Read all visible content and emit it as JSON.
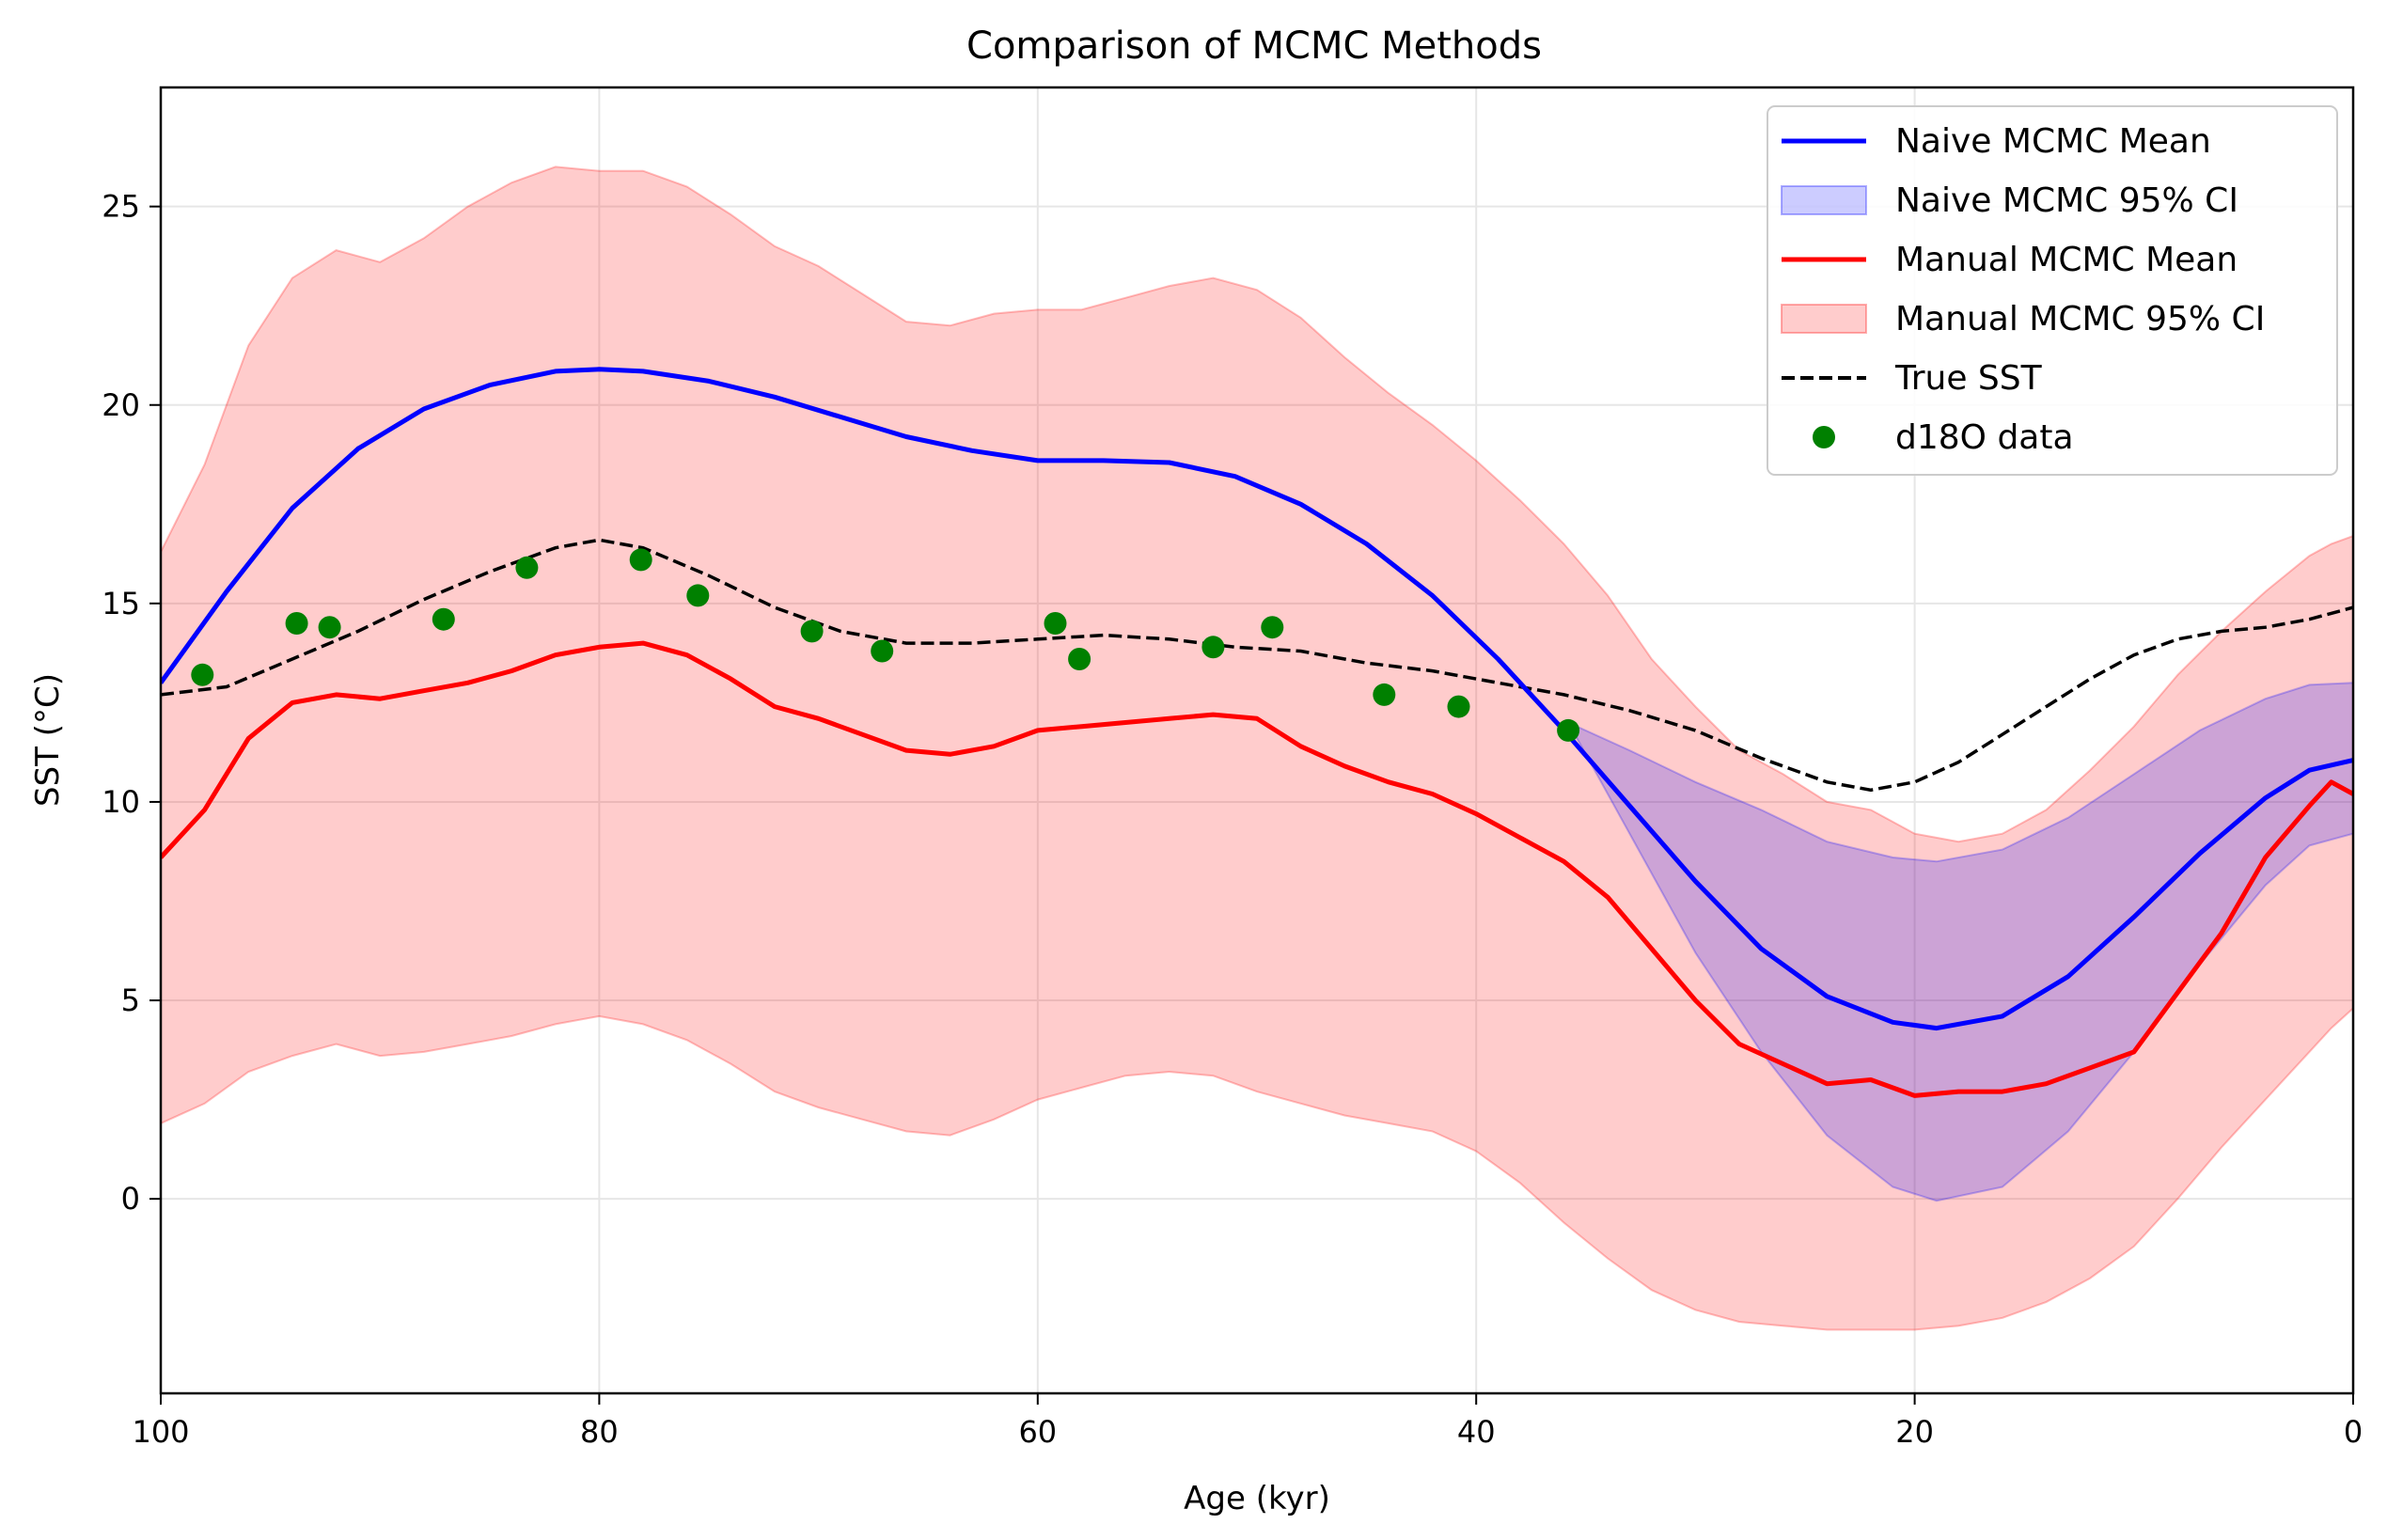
{
  "chart_data": {
    "type": "line",
    "title": "Comparison of MCMC Methods",
    "xlabel": "Age (kyr)",
    "ylabel": "SST (°C)",
    "xlim": [
      100,
      0
    ],
    "ylim": [
      -4.9,
      28
    ],
    "x_inverted": true,
    "grid": true,
    "legend_position": "upper right",
    "xticks": [
      {
        "value": 100,
        "label": "100"
      },
      {
        "value": 80,
        "label": "80"
      },
      {
        "value": 60,
        "label": "60"
      },
      {
        "value": 40,
        "label": "40"
      },
      {
        "value": 20,
        "label": "20"
      },
      {
        "value": 0,
        "label": "0"
      }
    ],
    "yticks": [
      {
        "value": 0,
        "label": "0"
      },
      {
        "value": 5,
        "label": "5"
      },
      {
        "value": 10,
        "label": "10"
      },
      {
        "value": 15,
        "label": "15"
      },
      {
        "value": 20,
        "label": "20"
      },
      {
        "value": 25,
        "label": "25"
      }
    ],
    "legend": [
      {
        "key": "naive_mean",
        "label": "Naive MCMC Mean"
      },
      {
        "key": "naive_ci",
        "label": "Naive MCMC 95% CI"
      },
      {
        "key": "manual_mean",
        "label": "Manual MCMC Mean"
      },
      {
        "key": "manual_ci",
        "label": "Manual MCMC 95% CI"
      },
      {
        "key": "true_sst",
        "label": "True SST"
      },
      {
        "key": "d18o",
        "label": "d18O data"
      }
    ],
    "colors": {
      "naive_mean": "#0000ff",
      "naive_ci": "#0000ff",
      "manual_mean": "#ff0000",
      "manual_ci": "#ff0000",
      "true_sst": "#000000",
      "d18o": "#008000"
    },
    "series": {
      "naive_mean": {
        "name": "Naive MCMC Mean",
        "x": [
          100,
          97,
          94,
          91,
          88,
          85,
          82,
          80,
          78,
          75,
          72,
          69,
          66,
          63,
          60,
          57,
          54,
          51,
          48,
          45,
          42,
          39,
          36,
          33,
          30,
          27,
          24,
          21,
          19,
          16,
          13,
          10,
          7,
          4,
          2,
          0
        ],
        "y": [
          13.0,
          15.3,
          17.4,
          18.9,
          19.9,
          20.5,
          20.85,
          20.9,
          20.85,
          20.6,
          20.2,
          19.7,
          19.2,
          18.85,
          18.6,
          18.6,
          18.55,
          18.2,
          17.5,
          16.5,
          15.2,
          13.6,
          11.8,
          9.9,
          8.0,
          6.3,
          5.1,
          4.45,
          4.3,
          4.6,
          5.6,
          7.1,
          8.7,
          10.1,
          10.8,
          11.05
        ]
      },
      "naive_ci": {
        "name": "Naive MCMC 95% CI",
        "x": [
          35.8,
          33,
          30,
          27,
          24,
          21,
          19,
          16,
          13,
          10,
          7,
          4,
          2,
          0
        ],
        "upper": [
          12.0,
          11.3,
          10.5,
          9.8,
          9.0,
          8.6,
          8.5,
          8.8,
          9.6,
          10.7,
          11.8,
          12.6,
          12.95,
          13.0
        ],
        "lower": [
          12.0,
          9.2,
          6.2,
          3.7,
          1.6,
          0.3,
          -0.05,
          0.3,
          1.7,
          3.7,
          5.9,
          7.9,
          8.9,
          9.2
        ]
      },
      "manual_mean": {
        "name": "Manual MCMC Mean",
        "x": [
          100,
          98,
          96,
          94,
          92,
          90,
          88,
          86,
          84,
          82,
          80,
          78,
          76,
          74,
          72,
          70,
          68,
          66,
          64,
          62,
          60,
          58,
          56,
          54,
          52,
          50,
          48,
          46,
          44,
          42,
          40,
          38,
          36,
          34,
          32,
          30,
          28,
          26,
          24,
          22,
          20,
          18,
          16,
          14,
          12,
          10,
          8,
          6,
          4,
          2,
          1,
          0
        ],
        "y": [
          8.6,
          9.8,
          11.6,
          12.5,
          12.7,
          12.6,
          12.8,
          13.0,
          13.3,
          13.7,
          13.9,
          14.0,
          13.7,
          13.1,
          12.4,
          12.1,
          11.7,
          11.3,
          11.2,
          11.4,
          11.8,
          11.9,
          12.0,
          12.1,
          12.2,
          12.1,
          11.4,
          10.9,
          10.5,
          10.2,
          9.7,
          9.1,
          8.5,
          7.6,
          6.3,
          5.0,
          3.9,
          3.4,
          2.9,
          3.0,
          2.6,
          2.7,
          2.7,
          2.9,
          3.3,
          3.7,
          5.2,
          6.7,
          8.6,
          9.9,
          10.5,
          10.2
        ]
      },
      "manual_ci": {
        "name": "Manual MCMC 95% CI",
        "x": [
          100,
          98,
          96,
          94,
          92,
          90,
          88,
          86,
          84,
          82,
          80,
          78,
          76,
          74,
          72,
          70,
          68,
          66,
          64,
          62,
          60,
          58,
          56,
          54,
          52,
          50,
          48,
          46,
          44,
          42,
          40,
          38,
          36,
          34,
          32,
          30,
          28,
          26,
          24,
          22,
          20,
          18,
          16,
          14,
          12,
          10,
          8,
          6,
          4,
          2,
          1,
          0
        ],
        "upper": [
          16.3,
          18.5,
          21.5,
          23.2,
          23.9,
          23.6,
          24.2,
          25.0,
          25.6,
          26.0,
          25.9,
          25.9,
          25.5,
          24.8,
          24.0,
          23.5,
          22.8,
          22.1,
          22.0,
          22.3,
          22.4,
          22.4,
          22.7,
          23.0,
          23.2,
          22.9,
          22.2,
          21.2,
          20.3,
          19.5,
          18.6,
          17.6,
          16.5,
          15.2,
          13.6,
          12.4,
          11.3,
          10.7,
          10.0,
          9.8,
          9.2,
          9.0,
          9.2,
          9.8,
          10.8,
          11.9,
          13.2,
          14.3,
          15.3,
          16.2,
          16.5,
          16.7
        ],
        "lower": [
          1.9,
          2.4,
          3.2,
          3.6,
          3.9,
          3.6,
          3.7,
          3.9,
          4.1,
          4.4,
          4.6,
          4.4,
          4.0,
          3.4,
          2.7,
          2.3,
          2.0,
          1.7,
          1.6,
          2.0,
          2.5,
          2.8,
          3.1,
          3.2,
          3.1,
          2.7,
          2.4,
          2.1,
          1.9,
          1.7,
          1.2,
          0.4,
          -0.6,
          -1.5,
          -2.3,
          -2.8,
          -3.1,
          -3.2,
          -3.3,
          -3.3,
          -3.3,
          -3.2,
          -3.0,
          -2.6,
          -2.0,
          -1.2,
          0.0,
          1.3,
          2.5,
          3.7,
          4.3,
          4.8
        ]
      },
      "true_sst": {
        "name": "True SST",
        "x": [
          100,
          97,
          94,
          91,
          88,
          85,
          82,
          80,
          78,
          75,
          72,
          69,
          66,
          63,
          60,
          57,
          54,
          51,
          48,
          45,
          42,
          39,
          36,
          33,
          30,
          27,
          24,
          22,
          20,
          18,
          16,
          14,
          12,
          10,
          8,
          6,
          4,
          2,
          0
        ],
        "y": [
          12.7,
          12.9,
          13.6,
          14.3,
          15.1,
          15.8,
          16.4,
          16.6,
          16.4,
          15.7,
          14.9,
          14.3,
          14.0,
          14.0,
          14.1,
          14.2,
          14.1,
          13.9,
          13.8,
          13.5,
          13.3,
          13.0,
          12.7,
          12.3,
          11.8,
          11.1,
          10.5,
          10.3,
          10.5,
          11.0,
          11.7,
          12.4,
          13.1,
          13.7,
          14.1,
          14.3,
          14.4,
          14.6,
          14.9
        ]
      },
      "d18o": {
        "name": "d18O data",
        "x": [
          98.1,
          93.8,
          92.3,
          87.1,
          83.3,
          78.1,
          75.5,
          70.3,
          67.1,
          59.2,
          58.1,
          52.0,
          49.3,
          44.2,
          40.8,
          35.8
        ],
        "y": [
          13.2,
          14.5,
          14.4,
          14.6,
          15.9,
          16.1,
          15.2,
          14.3,
          13.8,
          14.5,
          13.6,
          13.9,
          14.4,
          12.7,
          12.4,
          11.8
        ]
      }
    }
  }
}
